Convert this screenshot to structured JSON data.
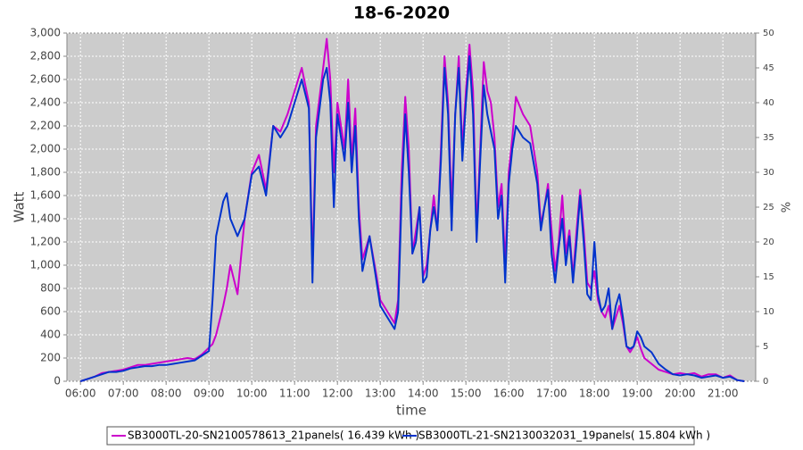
{
  "chart_data": {
    "type": "line",
    "title": "18-6-2020",
    "xlabel": "time",
    "ylabel": "Watt",
    "y2label": "%",
    "x": [
      "06:00",
      "06:10",
      "06:20",
      "06:30",
      "06:40",
      "06:50",
      "07:00",
      "07:10",
      "07:20",
      "07:30",
      "07:40",
      "07:50",
      "08:00",
      "08:10",
      "08:20",
      "08:30",
      "08:40",
      "08:50",
      "09:00",
      "09:05",
      "09:10",
      "09:20",
      "09:25",
      "09:30",
      "09:40",
      "09:50",
      "10:00",
      "10:10",
      "10:20",
      "10:30",
      "10:40",
      "10:50",
      "11:00",
      "11:10",
      "11:20",
      "11:25",
      "11:30",
      "11:40",
      "11:45",
      "11:50",
      "11:55",
      "12:00",
      "12:10",
      "12:15",
      "12:20",
      "12:25",
      "12:30",
      "12:35",
      "12:45",
      "12:55",
      "13:00",
      "13:10",
      "13:20",
      "13:25",
      "13:30",
      "13:35",
      "13:40",
      "13:45",
      "13:50",
      "13:55",
      "14:00",
      "14:05",
      "14:10",
      "14:15",
      "14:20",
      "14:25",
      "14:30",
      "14:35",
      "14:40",
      "14:45",
      "14:50",
      "14:55",
      "15:00",
      "15:05",
      "15:10",
      "15:15",
      "15:20",
      "15:25",
      "15:30",
      "15:35",
      "15:40",
      "15:45",
      "15:50",
      "15:55",
      "16:00",
      "16:05",
      "16:10",
      "16:20",
      "16:30",
      "16:40",
      "16:45",
      "16:50",
      "16:55",
      "17:00",
      "17:05",
      "17:10",
      "17:15",
      "17:20",
      "17:25",
      "17:30",
      "17:35",
      "17:40",
      "17:45",
      "17:50",
      "17:55",
      "18:00",
      "18:05",
      "18:10",
      "18:15",
      "18:20",
      "18:25",
      "18:30",
      "18:35",
      "18:40",
      "18:45",
      "18:50",
      "18:55",
      "19:00",
      "19:05",
      "19:10",
      "19:20",
      "19:30",
      "19:40",
      "19:50",
      "20:00",
      "20:10",
      "20:20",
      "20:30",
      "20:40",
      "20:50",
      "21:00",
      "21:10",
      "21:20",
      "21:30"
    ],
    "series": [
      {
        "name": "SB3000TL-20-SN2100578613_21panels( 16.439 kWh )",
        "color": "#cc00cc",
        "values": [
          0,
          20,
          40,
          70,
          80,
          90,
          100,
          120,
          140,
          140,
          150,
          160,
          170,
          180,
          190,
          200,
          190,
          230,
          290,
          320,
          400,
          650,
          800,
          1000,
          750,
          1400,
          1800,
          1950,
          1650,
          2200,
          2150,
          2300,
          2500,
          2700,
          2400,
          1000,
          2200,
          2700,
          2950,
          2600,
          1800,
          2400,
          2000,
          2600,
          1900,
          2350,
          1500,
          1050,
          1250,
          900,
          700,
          600,
          500,
          700,
          1800,
          2450,
          2000,
          1100,
          1300,
          1500,
          900,
          1000,
          1300,
          1600,
          1300,
          2000,
          2800,
          2400,
          1500,
          2300,
          2800,
          2000,
          2500,
          2900,
          2500,
          1300,
          2000,
          2750,
          2500,
          2400,
          2100,
          1500,
          1700,
          1000,
          1800,
          2100,
          2450,
          2300,
          2200,
          1800,
          1350,
          1500,
          1700,
          1300,
          950,
          1200,
          1600,
          1100,
          1300,
          900,
          1300,
          1650,
          1300,
          850,
          800,
          950,
          700,
          600,
          550,
          650,
          450,
          550,
          650,
          500,
          300,
          250,
          300,
          380,
          280,
          200,
          150,
          100,
          80,
          60,
          70,
          60,
          70,
          40,
          60,
          60,
          30,
          50,
          10,
          0
        ]
      },
      {
        "name": "SB3000TL-21-SN2130032031_19panels( 15.804 kWh )",
        "color": "#0033cc",
        "values": [
          0,
          20,
          40,
          60,
          80,
          80,
          90,
          110,
          120,
          130,
          130,
          140,
          140,
          150,
          160,
          170,
          180,
          220,
          260,
          700,
          1250,
          1550,
          1620,
          1400,
          1250,
          1400,
          1780,
          1850,
          1600,
          2200,
          2100,
          2200,
          2400,
          2600,
          2350,
          850,
          2100,
          2600,
          2700,
          2400,
          1500,
          2300,
          1900,
          2400,
          1800,
          2200,
          1400,
          950,
          1250,
          850,
          650,
          550,
          450,
          600,
          1600,
          2300,
          1800,
          1100,
          1200,
          1500,
          850,
          900,
          1300,
          1500,
          1300,
          1900,
          2700,
          2300,
          1300,
          2300,
          2700,
          1900,
          2400,
          2800,
          2300,
          1200,
          1900,
          2550,
          2300,
          2150,
          2000,
          1400,
          1600,
          850,
          1700,
          2000,
          2200,
          2100,
          2050,
          1700,
          1300,
          1500,
          1650,
          1100,
          850,
          1150,
          1400,
          1000,
          1250,
          850,
          1200,
          1600,
          1200,
          750,
          700,
          1200,
          750,
          600,
          650,
          800,
          450,
          650,
          750,
          550,
          300,
          280,
          300,
          430,
          380,
          300,
          250,
          150,
          100,
          60,
          50,
          60,
          50,
          30,
          40,
          50,
          30,
          40,
          10,
          0
        ]
      }
    ],
    "xlim": [
      "05:41",
      "21:46"
    ],
    "xticks": [
      "06:00",
      "07:00",
      "08:00",
      "09:00",
      "10:00",
      "11:00",
      "12:00",
      "13:00",
      "14:00",
      "15:00",
      "16:00",
      "17:00",
      "18:00",
      "19:00",
      "20:00",
      "21:00"
    ],
    "ylim": [
      0,
      3000
    ],
    "yticks": [
      0,
      200,
      400,
      600,
      800,
      {
        "value": 1000,
        "label": "1,000"
      },
      {
        "value": 1200,
        "label": "1,200"
      },
      {
        "value": 1400,
        "label": "1,400"
      },
      {
        "value": 1600,
        "label": "1,600"
      },
      {
        "value": 1800,
        "label": "1,800"
      },
      {
        "value": 2000,
        "label": "2,000"
      },
      {
        "value": 2200,
        "label": "2,200"
      },
      {
        "value": 2400,
        "label": "2,400"
      },
      {
        "value": 2600,
        "label": "2,600"
      },
      {
        "value": 2800,
        "label": "2,800"
      },
      {
        "value": 3000,
        "label": "3,000"
      }
    ],
    "y2lim": [
      0,
      50
    ],
    "y2ticks": [
      0,
      5,
      10,
      15,
      20,
      25,
      30,
      35,
      40,
      45,
      50
    ],
    "grid": true,
    "legend": "bottom"
  }
}
